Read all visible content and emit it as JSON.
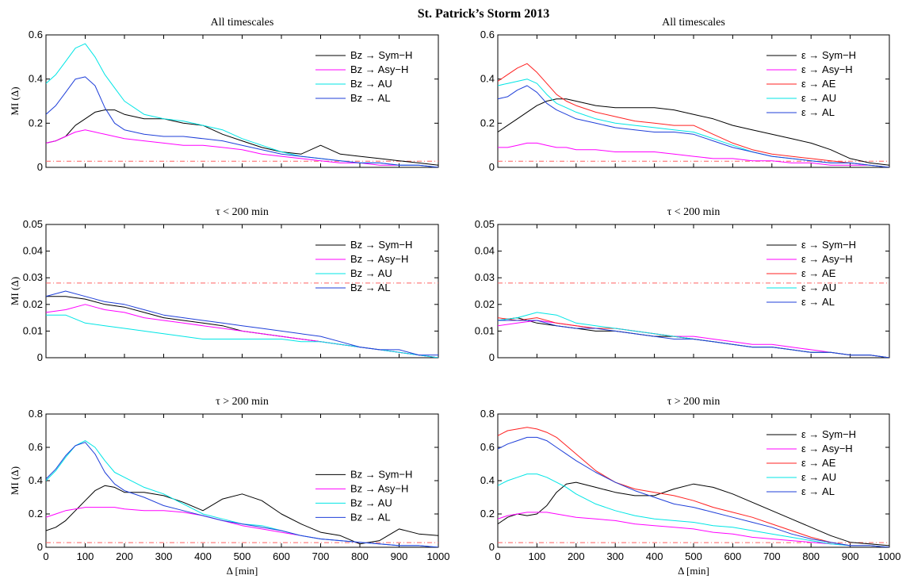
{
  "figure": {
    "title": "St. Patrick’s Storm 2013"
  },
  "chart_data": [
    {
      "type": "line",
      "title": "All timescales",
      "xlabel": "",
      "ylabel": "MI (Δ)",
      "xlim": [
        0,
        1000
      ],
      "ylim": [
        0,
        0.6
      ],
      "yticks": [
        "0",
        "0.2",
        "0.4",
        "0.6"
      ],
      "xticks": [],
      "legend_position": "top-right",
      "threshold": 0.028,
      "x": [
        0,
        25,
        50,
        75,
        100,
        125,
        150,
        175,
        200,
        250,
        300,
        350,
        400,
        450,
        500,
        550,
        600,
        650,
        700,
        750,
        800,
        850,
        900,
        950,
        1000
      ],
      "series": [
        {
          "name": "Bz → Sym−H",
          "color": "#000000",
          "values": [
            0.11,
            0.12,
            0.14,
            0.19,
            0.22,
            0.25,
            0.26,
            0.26,
            0.24,
            0.22,
            0.22,
            0.2,
            0.19,
            0.15,
            0.12,
            0.09,
            0.07,
            0.06,
            0.1,
            0.06,
            0.05,
            0.04,
            0.03,
            0.02,
            0.01
          ]
        },
        {
          "name": "Bz → Asy−H",
          "color": "#ff00ff",
          "values": [
            0.11,
            0.12,
            0.14,
            0.16,
            0.17,
            0.16,
            0.15,
            0.14,
            0.13,
            0.12,
            0.11,
            0.1,
            0.1,
            0.09,
            0.08,
            0.06,
            0.05,
            0.04,
            0.03,
            0.02,
            0.02,
            0.01,
            0.01,
            0.01,
            0.0
          ]
        },
        {
          "name": "Bz → AU",
          "color": "#00e5e5",
          "values": [
            0.38,
            0.42,
            0.48,
            0.54,
            0.56,
            0.5,
            0.42,
            0.36,
            0.3,
            0.24,
            0.22,
            0.21,
            0.19,
            0.17,
            0.13,
            0.1,
            0.07,
            0.05,
            0.04,
            0.03,
            0.02,
            0.02,
            0.01,
            0.01,
            0.0
          ]
        },
        {
          "name": "Bz → AL",
          "color": "#1f3fd9",
          "values": [
            0.24,
            0.28,
            0.34,
            0.4,
            0.41,
            0.37,
            0.27,
            0.2,
            0.17,
            0.15,
            0.14,
            0.14,
            0.13,
            0.12,
            0.1,
            0.08,
            0.06,
            0.05,
            0.04,
            0.03,
            0.02,
            0.02,
            0.01,
            0.01,
            0.0
          ]
        }
      ]
    },
    {
      "type": "line",
      "title": "All timescales",
      "xlabel": "",
      "ylabel": "",
      "xlim": [
        0,
        1000
      ],
      "ylim": [
        0,
        0.6
      ],
      "yticks": [
        "0",
        "0.2",
        "0.4",
        "0.6"
      ],
      "xticks": [],
      "legend_position": "top-right",
      "threshold": 0.028,
      "x": [
        0,
        25,
        50,
        75,
        100,
        125,
        150,
        175,
        200,
        250,
        300,
        350,
        400,
        450,
        500,
        550,
        600,
        650,
        700,
        750,
        800,
        850,
        900,
        950,
        1000
      ],
      "series": [
        {
          "name": "ε → Sym−H",
          "color": "#000000",
          "values": [
            0.16,
            0.19,
            0.22,
            0.25,
            0.28,
            0.3,
            0.31,
            0.31,
            0.3,
            0.28,
            0.27,
            0.27,
            0.27,
            0.26,
            0.24,
            0.22,
            0.19,
            0.17,
            0.15,
            0.13,
            0.11,
            0.08,
            0.04,
            0.02,
            0.01
          ]
        },
        {
          "name": "ε → Asy−H",
          "color": "#ff00ff",
          "values": [
            0.09,
            0.09,
            0.1,
            0.11,
            0.11,
            0.1,
            0.09,
            0.09,
            0.08,
            0.08,
            0.07,
            0.07,
            0.07,
            0.06,
            0.05,
            0.04,
            0.04,
            0.03,
            0.03,
            0.02,
            0.02,
            0.01,
            0.01,
            0.01,
            0.0
          ]
        },
        {
          "name": "ε → AE",
          "color": "#ff2020",
          "values": [
            0.39,
            0.42,
            0.45,
            0.47,
            0.43,
            0.38,
            0.33,
            0.3,
            0.28,
            0.25,
            0.23,
            0.21,
            0.2,
            0.19,
            0.19,
            0.15,
            0.11,
            0.08,
            0.06,
            0.05,
            0.04,
            0.03,
            0.02,
            0.01,
            0.0
          ]
        },
        {
          "name": "ε → AU",
          "color": "#00e5e5",
          "values": [
            0.37,
            0.38,
            0.39,
            0.4,
            0.38,
            0.33,
            0.29,
            0.27,
            0.25,
            0.22,
            0.2,
            0.19,
            0.18,
            0.17,
            0.16,
            0.13,
            0.1,
            0.07,
            0.05,
            0.04,
            0.03,
            0.02,
            0.02,
            0.01,
            0.0
          ]
        },
        {
          "name": "ε → AL",
          "color": "#1f3fd9",
          "values": [
            0.31,
            0.32,
            0.35,
            0.37,
            0.34,
            0.29,
            0.26,
            0.24,
            0.22,
            0.2,
            0.18,
            0.17,
            0.16,
            0.16,
            0.15,
            0.12,
            0.09,
            0.07,
            0.05,
            0.04,
            0.03,
            0.02,
            0.02,
            0.01,
            0.0
          ]
        }
      ]
    },
    {
      "type": "line",
      "title": "τ < 200 min",
      "xlabel": "",
      "ylabel": "MI (Δ)",
      "xlim": [
        0,
        1000
      ],
      "ylim": [
        0,
        0.05
      ],
      "yticks": [
        "0",
        "0.01",
        "0.02",
        "0.03",
        "0.04",
        "0.05"
      ],
      "xticks": [],
      "legend_position": "top-right",
      "threshold": 0.028,
      "x": [
        0,
        50,
        100,
        150,
        200,
        250,
        300,
        350,
        400,
        450,
        500,
        550,
        600,
        650,
        700,
        750,
        800,
        850,
        900,
        950,
        1000
      ],
      "series": [
        {
          "name": "Bz → Sym−H",
          "color": "#000000",
          "values": [
            0.023,
            0.023,
            0.022,
            0.02,
            0.019,
            0.017,
            0.015,
            0.014,
            0.013,
            0.012,
            0.01,
            0.009,
            0.008,
            0.007,
            0.006,
            0.005,
            0.004,
            0.003,
            0.002,
            0.001,
            0.0
          ]
        },
        {
          "name": "Bz → Asy−H",
          "color": "#ff00ff",
          "values": [
            0.017,
            0.018,
            0.02,
            0.018,
            0.017,
            0.015,
            0.014,
            0.013,
            0.012,
            0.011,
            0.01,
            0.009,
            0.008,
            0.007,
            0.006,
            0.005,
            0.004,
            0.003,
            0.002,
            0.001,
            0.0
          ]
        },
        {
          "name": "Bz → AU",
          "color": "#00e5e5",
          "values": [
            0.016,
            0.016,
            0.013,
            0.012,
            0.011,
            0.01,
            0.009,
            0.008,
            0.007,
            0.007,
            0.007,
            0.007,
            0.007,
            0.006,
            0.006,
            0.005,
            0.004,
            0.003,
            0.002,
            0.001,
            0.0
          ]
        },
        {
          "name": "Bz → AL",
          "color": "#1f3fd9",
          "values": [
            0.023,
            0.025,
            0.023,
            0.021,
            0.02,
            0.018,
            0.016,
            0.015,
            0.014,
            0.013,
            0.012,
            0.011,
            0.01,
            0.009,
            0.008,
            0.006,
            0.004,
            0.003,
            0.003,
            0.001,
            0.001
          ]
        }
      ]
    },
    {
      "type": "line",
      "title": "τ < 200 min",
      "xlabel": "",
      "ylabel": "",
      "xlim": [
        0,
        1000
      ],
      "ylim": [
        0,
        0.05
      ],
      "yticks": [
        "0",
        "0.01",
        "0.02",
        "0.03",
        "0.04",
        "0.05"
      ],
      "xticks": [],
      "legend_position": "top-right",
      "threshold": 0.028,
      "x": [
        0,
        50,
        100,
        150,
        200,
        250,
        300,
        350,
        400,
        450,
        500,
        550,
        600,
        650,
        700,
        750,
        800,
        850,
        900,
        950,
        1000
      ],
      "series": [
        {
          "name": "ε → Sym−H",
          "color": "#000000",
          "values": [
            0.014,
            0.015,
            0.013,
            0.012,
            0.011,
            0.01,
            0.01,
            0.009,
            0.008,
            0.008,
            0.007,
            0.006,
            0.005,
            0.004,
            0.004,
            0.003,
            0.002,
            0.002,
            0.001,
            0.001,
            0.0
          ]
        },
        {
          "name": "ε → Asy−H",
          "color": "#ff00ff",
          "values": [
            0.012,
            0.013,
            0.014,
            0.013,
            0.012,
            0.011,
            0.011,
            0.01,
            0.009,
            0.008,
            0.008,
            0.007,
            0.006,
            0.005,
            0.005,
            0.004,
            0.003,
            0.002,
            0.001,
            0.001,
            0.0
          ]
        },
        {
          "name": "ε → AE",
          "color": "#ff2020",
          "values": [
            0.015,
            0.014,
            0.015,
            0.013,
            0.012,
            0.011,
            0.011,
            0.01,
            0.009,
            0.008,
            0.007,
            0.006,
            0.005,
            0.004,
            0.004,
            0.003,
            0.002,
            0.002,
            0.001,
            0.001,
            0.0
          ]
        },
        {
          "name": "ε → AU",
          "color": "#00e5e5",
          "values": [
            0.014,
            0.015,
            0.017,
            0.016,
            0.013,
            0.012,
            0.011,
            0.01,
            0.009,
            0.008,
            0.007,
            0.006,
            0.005,
            0.004,
            0.004,
            0.003,
            0.002,
            0.002,
            0.001,
            0.001,
            0.0
          ]
        },
        {
          "name": "ε → AL",
          "color": "#1f3fd9",
          "values": [
            0.014,
            0.014,
            0.014,
            0.012,
            0.011,
            0.011,
            0.01,
            0.009,
            0.008,
            0.007,
            0.007,
            0.006,
            0.005,
            0.004,
            0.004,
            0.003,
            0.002,
            0.002,
            0.001,
            0.001,
            0.0
          ]
        }
      ]
    },
    {
      "type": "line",
      "title": "τ > 200 min",
      "xlabel": "Δ [min]",
      "ylabel": "MI (Δ)",
      "xlim": [
        0,
        1000
      ],
      "ylim": [
        0,
        0.8
      ],
      "yticks": [
        "0",
        "0.2",
        "0.4",
        "0.6",
        "0.8"
      ],
      "xticks": [
        "0",
        "100",
        "200",
        "300",
        "400",
        "500",
        "600",
        "700",
        "800",
        "900",
        "1000"
      ],
      "legend_position": "middle-right",
      "threshold": 0.028,
      "x": [
        0,
        25,
        50,
        75,
        100,
        125,
        150,
        175,
        200,
        250,
        300,
        350,
        400,
        450,
        500,
        550,
        600,
        650,
        700,
        750,
        800,
        850,
        900,
        950,
        1000
      ],
      "series": [
        {
          "name": "Bz → Sym−H",
          "color": "#000000",
          "values": [
            0.1,
            0.12,
            0.16,
            0.22,
            0.28,
            0.34,
            0.37,
            0.36,
            0.33,
            0.33,
            0.31,
            0.27,
            0.22,
            0.29,
            0.32,
            0.28,
            0.2,
            0.14,
            0.09,
            0.07,
            0.02,
            0.04,
            0.11,
            0.08,
            0.07
          ]
        },
        {
          "name": "Bz → Asy−H",
          "color": "#ff00ff",
          "values": [
            0.18,
            0.2,
            0.22,
            0.23,
            0.24,
            0.24,
            0.24,
            0.24,
            0.23,
            0.22,
            0.22,
            0.21,
            0.19,
            0.16,
            0.13,
            0.11,
            0.09,
            0.07,
            0.05,
            0.04,
            0.03,
            0.02,
            0.01,
            0.01,
            0.0
          ]
        },
        {
          "name": "Bz → AU",
          "color": "#00e5e5",
          "values": [
            0.4,
            0.46,
            0.54,
            0.61,
            0.64,
            0.6,
            0.52,
            0.45,
            0.42,
            0.36,
            0.32,
            0.26,
            0.2,
            0.17,
            0.14,
            0.13,
            0.1,
            0.07,
            0.05,
            0.04,
            0.03,
            0.02,
            0.01,
            0.01,
            0.0
          ]
        },
        {
          "name": "Bz → AL",
          "color": "#1f3fd9",
          "values": [
            0.41,
            0.47,
            0.55,
            0.61,
            0.63,
            0.56,
            0.45,
            0.38,
            0.34,
            0.3,
            0.25,
            0.22,
            0.19,
            0.16,
            0.14,
            0.12,
            0.1,
            0.07,
            0.05,
            0.04,
            0.03,
            0.02,
            0.01,
            0.01,
            0.0
          ]
        }
      ]
    },
    {
      "type": "line",
      "title": "τ > 200 min",
      "xlabel": "Δ [min]",
      "ylabel": "",
      "xlim": [
        0,
        1000
      ],
      "ylim": [
        0,
        0.8
      ],
      "yticks": [
        "0",
        "0.2",
        "0.4",
        "0.6",
        "0.8"
      ],
      "xticks": [
        "0",
        "100",
        "200",
        "300",
        "400",
        "500",
        "600",
        "700",
        "800",
        "900",
        "1000"
      ],
      "legend_position": "middle-right",
      "threshold": 0.028,
      "x": [
        0,
        25,
        50,
        75,
        100,
        125,
        150,
        175,
        200,
        250,
        300,
        350,
        400,
        450,
        500,
        550,
        600,
        650,
        700,
        750,
        800,
        850,
        900,
        950,
        1000
      ],
      "series": [
        {
          "name": "ε → Sym−H",
          "color": "#000000",
          "values": [
            0.14,
            0.18,
            0.2,
            0.19,
            0.2,
            0.25,
            0.33,
            0.38,
            0.39,
            0.36,
            0.33,
            0.31,
            0.31,
            0.35,
            0.38,
            0.36,
            0.32,
            0.27,
            0.22,
            0.17,
            0.12,
            0.07,
            0.03,
            0.02,
            0.01
          ]
        },
        {
          "name": "ε → Asy−H",
          "color": "#ff00ff",
          "values": [
            0.17,
            0.19,
            0.2,
            0.21,
            0.21,
            0.21,
            0.2,
            0.19,
            0.18,
            0.17,
            0.16,
            0.14,
            0.13,
            0.12,
            0.11,
            0.09,
            0.08,
            0.06,
            0.05,
            0.04,
            0.03,
            0.02,
            0.01,
            0.01,
            0.0
          ]
        },
        {
          "name": "ε → AE",
          "color": "#ff2020",
          "values": [
            0.67,
            0.7,
            0.71,
            0.72,
            0.71,
            0.69,
            0.66,
            0.61,
            0.56,
            0.46,
            0.39,
            0.35,
            0.33,
            0.31,
            0.28,
            0.24,
            0.21,
            0.18,
            0.14,
            0.1,
            0.06,
            0.03,
            0.01,
            0.01,
            0.0
          ]
        },
        {
          "name": "ε → AU",
          "color": "#00e5e5",
          "values": [
            0.37,
            0.4,
            0.42,
            0.44,
            0.44,
            0.42,
            0.39,
            0.36,
            0.32,
            0.26,
            0.22,
            0.19,
            0.17,
            0.16,
            0.15,
            0.13,
            0.12,
            0.1,
            0.08,
            0.06,
            0.04,
            0.02,
            0.01,
            0.01,
            0.0
          ]
        },
        {
          "name": "ε → AL",
          "color": "#1f3fd9",
          "values": [
            0.59,
            0.62,
            0.64,
            0.66,
            0.66,
            0.64,
            0.6,
            0.56,
            0.52,
            0.45,
            0.39,
            0.34,
            0.3,
            0.26,
            0.24,
            0.21,
            0.18,
            0.15,
            0.12,
            0.08,
            0.05,
            0.03,
            0.01,
            0.01,
            0.0
          ]
        }
      ]
    }
  ]
}
